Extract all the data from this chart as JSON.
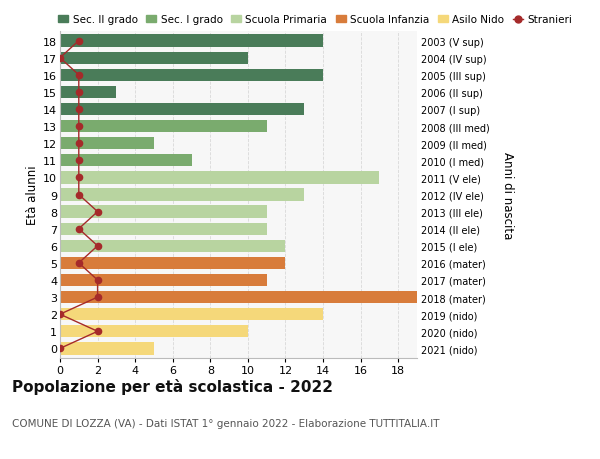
{
  "ages": [
    18,
    17,
    16,
    15,
    14,
    13,
    12,
    11,
    10,
    9,
    8,
    7,
    6,
    5,
    4,
    3,
    2,
    1,
    0
  ],
  "years": [
    "2003 (V sup)",
    "2004 (IV sup)",
    "2005 (III sup)",
    "2006 (II sup)",
    "2007 (I sup)",
    "2008 (III med)",
    "2009 (II med)",
    "2010 (I med)",
    "2011 (V ele)",
    "2012 (IV ele)",
    "2013 (III ele)",
    "2014 (II ele)",
    "2015 (I ele)",
    "2016 (mater)",
    "2017 (mater)",
    "2018 (mater)",
    "2019 (nido)",
    "2020 (nido)",
    "2021 (nido)"
  ],
  "bar_values": [
    14,
    10,
    14,
    3,
    13,
    11,
    5,
    7,
    17,
    13,
    11,
    11,
    12,
    12,
    11,
    19,
    14,
    10,
    5
  ],
  "bar_colors": [
    "#4a7c59",
    "#4a7c59",
    "#4a7c59",
    "#4a7c59",
    "#4a7c59",
    "#7aab6e",
    "#7aab6e",
    "#7aab6e",
    "#b8d4a0",
    "#b8d4a0",
    "#b8d4a0",
    "#b8d4a0",
    "#b8d4a0",
    "#d87c3b",
    "#d87c3b",
    "#d87c3b",
    "#f5d87a",
    "#f5d87a",
    "#f5d87a"
  ],
  "stranieri_values": [
    1,
    0,
    1,
    1,
    1,
    1,
    1,
    1,
    1,
    1,
    2,
    1,
    2,
    1,
    2,
    2,
    0,
    2,
    0
  ],
  "stranieri_color": "#a52a2a",
  "legend_labels": [
    "Sec. II grado",
    "Sec. I grado",
    "Scuola Primaria",
    "Scuola Infanzia",
    "Asilo Nido",
    "Stranieri"
  ],
  "legend_colors": [
    "#4a7c59",
    "#7aab6e",
    "#b8d4a0",
    "#d87c3b",
    "#f5d87a",
    "#a52a2a"
  ],
  "ylabel_left": "Età alunni",
  "ylabel_right": "Anni di nascita",
  "title": "Popolazione per età scolastica - 2022",
  "subtitle": "COMUNE DI LOZZA (VA) - Dati ISTAT 1° gennaio 2022 - Elaborazione TUTTITALIA.IT",
  "xlim_max": 19,
  "xticks": [
    0,
    2,
    4,
    6,
    8,
    10,
    12,
    14,
    16,
    18
  ],
  "bg_color": "#f7f7f7",
  "fig_bg": "#ffffff",
  "grid_color": "#d8d8d8",
  "bar_height": 0.72,
  "title_fontsize": 11,
  "subtitle_fontsize": 7.5,
  "tick_fontsize": 8,
  "legend_fontsize": 7.5,
  "axis_label_fontsize": 8.5
}
